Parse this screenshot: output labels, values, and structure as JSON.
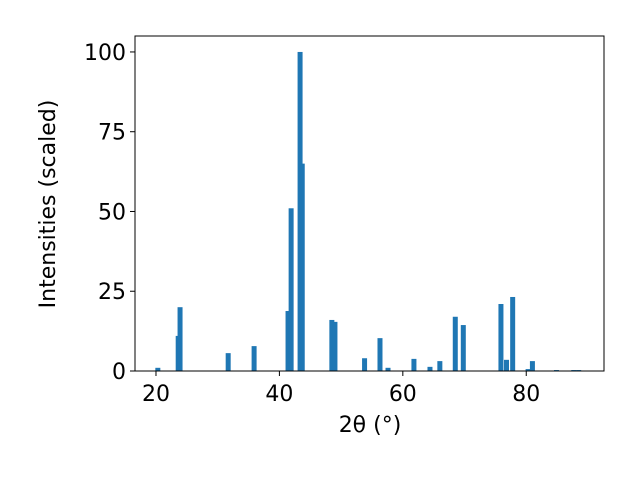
{
  "chart_data": {
    "type": "bar",
    "xlabel": "2θ (°)",
    "ylabel": "Intensities (scaled)",
    "x": [
      20.3,
      23.6,
      23.9,
      31.7,
      35.9,
      41.4,
      41.9,
      43.35,
      43.7,
      48.5,
      49.0,
      53.8,
      56.3,
      57.6,
      61.8,
      64.4,
      66.0,
      68.5,
      69.8,
      75.9,
      76.8,
      77.8,
      80.3,
      81.0,
      84.9,
      87.7,
      88.5
    ],
    "values": [
      1,
      11,
      20,
      5.6,
      7.8,
      18.8,
      51,
      100,
      65,
      16,
      15.4,
      4,
      10.3,
      1,
      3.8,
      1.3,
      3.1,
      17,
      14.4,
      21,
      3.5,
      23.2,
      0.6,
      3.1,
      0.3,
      0.3,
      0.3
    ],
    "color": "#1f77b4",
    "xlim": [
      16.6,
      92.6
    ],
    "ylim": [
      0,
      105
    ],
    "xticks": [
      20,
      40,
      60,
      80
    ],
    "yticks": [
      0,
      25,
      50,
      75,
      100
    ]
  }
}
